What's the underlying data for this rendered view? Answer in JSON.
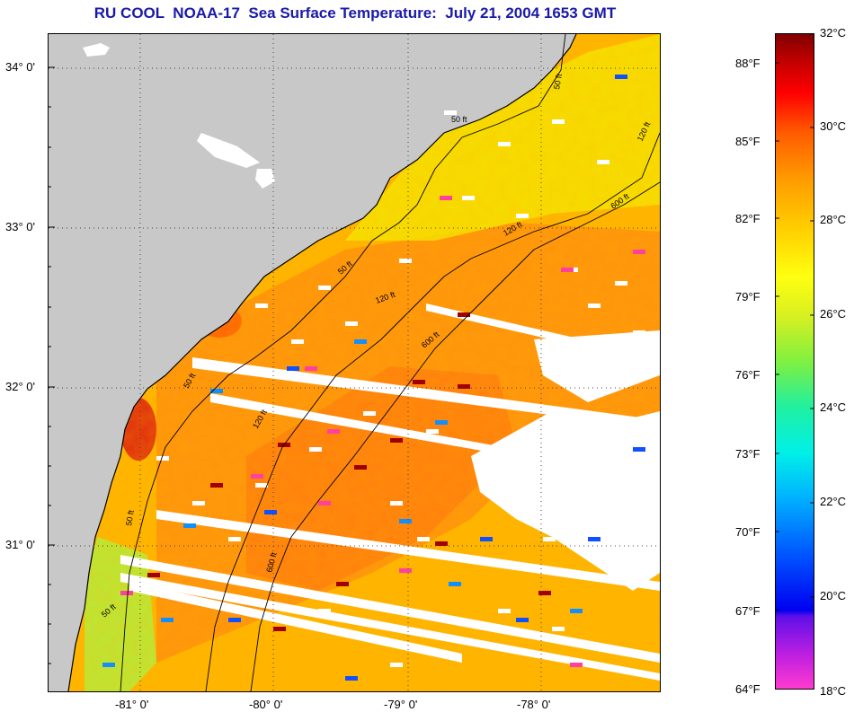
{
  "title": "RU COOL  NOAA-17  Sea Surface Temperature:  July 21, 2004 1653 GMT",
  "map": {
    "latitude_labels": [
      "34° 0'",
      "33° 0'",
      "32° 0'",
      "31° 0'"
    ],
    "longitude_labels": [
      "-81° 0'",
      "-80° 0'",
      "-79° 0'",
      "-78° 0'"
    ],
    "contour_labels": [
      "50 ft",
      "50 ft",
      "120 ft",
      "600 ft",
      "50 ft",
      "120 ft",
      "600 ft",
      "50 ft",
      "120 ft",
      "600 ft",
      "50 ft",
      "50 ft",
      "120 ft"
    ],
    "land_color": "#c8c8c8",
    "cloud_color": "#ffffff",
    "water_base_color": "#ffb000"
  },
  "colorbar": {
    "fahrenheit_labels": [
      "88°F",
      "85°F",
      "82°F",
      "79°F",
      "76°F",
      "73°F",
      "70°F",
      "67°F",
      "64°F"
    ],
    "celsius_labels": [
      "32°C",
      "30°C",
      "28°C",
      "26°C",
      "24°C",
      "22°C",
      "20°C",
      "18°C"
    ]
  }
}
